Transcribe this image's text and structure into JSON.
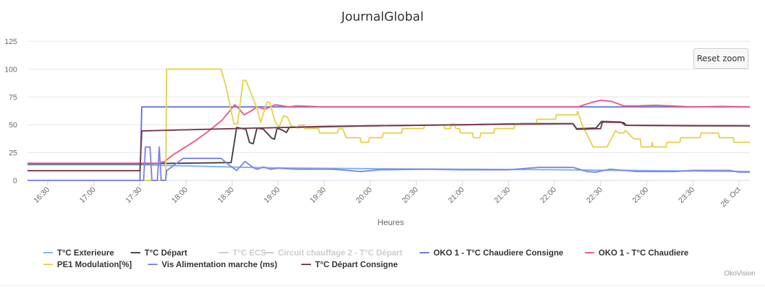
{
  "chart_data": {
    "type": "line",
    "title": "JournalGlobal",
    "xlabel": "Heures",
    "ylabel": "",
    "ylim": [
      0,
      125
    ],
    "xlim_hours": [
      16.28,
      24.12
    ],
    "y_ticks": [
      "0",
      "25",
      "50",
      "75",
      "100",
      "125"
    ],
    "y_tick_values": [
      0,
      25,
      50,
      75,
      100,
      125
    ],
    "x_ticks": [
      {
        "t": 16.5,
        "label": "16:30"
      },
      {
        "t": 17,
        "label": "17:00"
      },
      {
        "t": 17.5,
        "label": "17:30"
      },
      {
        "t": 18,
        "label": "18:00"
      },
      {
        "t": 18.5,
        "label": "18:30"
      },
      {
        "t": 19,
        "label": "19:00"
      },
      {
        "t": 19.5,
        "label": "19:30"
      },
      {
        "t": 20,
        "label": "20:00"
      },
      {
        "t": 20.5,
        "label": "20:30"
      },
      {
        "t": 21,
        "label": "21:00"
      },
      {
        "t": 21.5,
        "label": "21:30"
      },
      {
        "t": 22,
        "label": "22:00"
      },
      {
        "t": 22.5,
        "label": "22:30"
      },
      {
        "t": 23,
        "label": "23:00"
      },
      {
        "t": 23.5,
        "label": "23:30"
      },
      {
        "t": 24,
        "label": "26. Oct"
      }
    ],
    "grid": true,
    "legend_position": "bottom",
    "series": [
      {
        "name": "T°C Exterieure",
        "color": "#7cb5ec",
        "visible": true,
        "data": [
          [
            16.28,
            14
          ],
          [
            17.5,
            14
          ],
          [
            18,
            13
          ],
          [
            18.6,
            11.8
          ],
          [
            19,
            11.2
          ],
          [
            20,
            10.5
          ],
          [
            21,
            10
          ],
          [
            22,
            9.6
          ],
          [
            23,
            8.8
          ],
          [
            24.12,
            8
          ]
        ]
      },
      {
        "name": "T°C Départ",
        "color": "#434348",
        "visible": true,
        "data": [
          [
            16.28,
            15
          ],
          [
            17.5,
            15
          ],
          [
            18,
            15.5
          ],
          [
            18.49,
            16
          ],
          [
            18.55,
            47.6
          ],
          [
            18.65,
            46
          ],
          [
            18.69,
            34
          ],
          [
            18.73,
            33
          ],
          [
            18.77,
            47
          ],
          [
            18.84,
            46
          ],
          [
            18.93,
            38
          ],
          [
            18.96,
            37
          ],
          [
            18.99,
            47
          ],
          [
            19.05,
            45
          ],
          [
            19.09,
            43
          ],
          [
            19.12,
            47.6
          ],
          [
            20,
            49
          ],
          [
            21,
            50
          ],
          [
            21.66,
            51
          ],
          [
            22.2,
            51
          ],
          [
            22.24,
            46.5
          ],
          [
            22.45,
            47
          ],
          [
            22.51,
            53
          ],
          [
            22.72,
            52.5
          ],
          [
            22.77,
            49.5
          ],
          [
            23.5,
            49
          ],
          [
            24.12,
            49
          ]
        ]
      },
      {
        "name": "T°C ECS",
        "color": "#90ed7d",
        "visible": false,
        "data": []
      },
      {
        "name": "Circuit chauffage 2 - T°C Départ",
        "color": "#f7a35c",
        "visible": false,
        "data": []
      },
      {
        "name": "OKO 1 - T°C Chaudiere Consigne",
        "color": "#6677dd",
        "visible": true,
        "data": [
          [
            16.28,
            0
          ],
          [
            17.5,
            0
          ],
          [
            17.52,
            66
          ],
          [
            24.12,
            66
          ]
        ]
      },
      {
        "name": "OKO 1 - T°C Chaudiere",
        "color": "#f05a87",
        "visible": true,
        "data": [
          [
            16.28,
            15.5
          ],
          [
            17.7,
            15.5
          ],
          [
            17.77,
            17
          ],
          [
            17.86,
            23
          ],
          [
            18.09,
            35
          ],
          [
            18.24,
            44
          ],
          [
            18.39,
            54
          ],
          [
            18.53,
            68
          ],
          [
            18.58,
            64
          ],
          [
            18.63,
            59
          ],
          [
            18.7,
            62
          ],
          [
            18.77,
            66
          ],
          [
            18.86,
            64
          ],
          [
            18.97,
            68
          ],
          [
            19.12,
            66
          ],
          [
            19.2,
            67
          ],
          [
            19.5,
            66
          ],
          [
            22.25,
            66
          ],
          [
            22.4,
            70
          ],
          [
            22.5,
            72
          ],
          [
            22.62,
            71
          ],
          [
            22.75,
            67
          ],
          [
            22.9,
            67
          ],
          [
            23.1,
            67.5
          ],
          [
            23.5,
            66
          ],
          [
            23.8,
            66.5
          ],
          [
            24.12,
            66
          ]
        ]
      },
      {
        "name": "PE1 Modulation[%]",
        "color": "#e4d354",
        "visible": true,
        "data": [
          [
            16.28,
            0
          ],
          [
            17.78,
            0
          ],
          [
            17.79,
            100
          ],
          [
            18.38,
            100
          ],
          [
            18.43,
            86
          ],
          [
            18.52,
            51
          ],
          [
            18.56,
            51
          ],
          [
            18.62,
            90
          ],
          [
            18.65,
            90
          ],
          [
            18.77,
            65
          ],
          [
            18.81,
            52
          ],
          [
            18.88,
            70.5
          ],
          [
            18.91,
            70
          ],
          [
            18.97,
            52
          ],
          [
            19.01,
            48
          ],
          [
            19.06,
            58
          ],
          [
            19.1,
            57
          ],
          [
            19.14,
            49
          ],
          [
            19.22,
            47
          ],
          [
            19.23,
            49.7
          ],
          [
            19.28,
            49.7
          ],
          [
            19.29,
            46.6
          ],
          [
            19.44,
            46.6
          ],
          [
            19.45,
            42.5
          ],
          [
            19.64,
            42.5
          ],
          [
            19.66,
            46.6
          ],
          [
            19.7,
            46.6
          ],
          [
            19.72,
            42.5
          ],
          [
            19.74,
            38.4
          ],
          [
            19.89,
            38.4
          ],
          [
            19.9,
            34.2
          ],
          [
            19.98,
            34.2
          ],
          [
            19.99,
            38.4
          ],
          [
            20.13,
            38.4
          ],
          [
            20.14,
            42.5
          ],
          [
            20.34,
            42.5
          ],
          [
            20.35,
            46.6
          ],
          [
            20.58,
            46.6
          ],
          [
            20.59,
            49.7
          ],
          [
            20.8,
            49.7
          ],
          [
            20.81,
            46.6
          ],
          [
            20.87,
            46.6
          ],
          [
            20.88,
            50.7
          ],
          [
            20.91,
            50.7
          ],
          [
            20.93,
            46.6
          ],
          [
            20.97,
            46.6
          ],
          [
            20.98,
            42.5
          ],
          [
            21.11,
            42.5
          ],
          [
            21.12,
            38.4
          ],
          [
            21.19,
            38.4
          ],
          [
            21.2,
            42.5
          ],
          [
            21.34,
            42.5
          ],
          [
            21.35,
            46.6
          ],
          [
            21.56,
            46.6
          ],
          [
            21.57,
            50.7
          ],
          [
            21.8,
            50.7
          ],
          [
            21.81,
            54.9
          ],
          [
            22.01,
            54.9
          ],
          [
            22.02,
            59
          ],
          [
            22.24,
            59
          ],
          [
            22.25,
            62
          ],
          [
            22.3,
            50
          ],
          [
            22.42,
            30
          ],
          [
            22.57,
            30
          ],
          [
            22.66,
            44.6
          ],
          [
            22.7,
            42.5
          ],
          [
            22.75,
            42.5
          ],
          [
            22.77,
            45
          ],
          [
            22.86,
            37.3
          ],
          [
            22.93,
            37.3
          ],
          [
            22.94,
            30
          ],
          [
            23.05,
            30
          ],
          [
            23.06,
            34.2
          ],
          [
            23.07,
            30
          ],
          [
            23.21,
            30
          ],
          [
            23.22,
            34.2
          ],
          [
            23.36,
            34.2
          ],
          [
            23.37,
            38.4
          ],
          [
            23.58,
            38.4
          ],
          [
            23.59,
            42.5
          ],
          [
            23.78,
            42.5
          ],
          [
            23.79,
            38.4
          ],
          [
            23.94,
            38.4
          ],
          [
            23.95,
            34.2
          ],
          [
            24.12,
            34.2
          ]
        ]
      },
      {
        "name": "Vis Alimentation marche (ms)",
        "color": "#8085e9",
        "visible": true,
        "data": [
          [
            16.28,
            0
          ],
          [
            17.54,
            0
          ],
          [
            17.56,
            30
          ],
          [
            17.61,
            30
          ],
          [
            17.63,
            0
          ],
          [
            17.69,
            0
          ],
          [
            17.71,
            30
          ],
          [
            17.73,
            0
          ],
          [
            17.78,
            0
          ],
          [
            17.79,
            8.7
          ],
          [
            17.97,
            19.8
          ],
          [
            18.38,
            19.8
          ],
          [
            18.48,
            13
          ],
          [
            18.55,
            9
          ],
          [
            18.64,
            17
          ],
          [
            18.72,
            12
          ],
          [
            18.77,
            10
          ],
          [
            18.84,
            12
          ],
          [
            18.92,
            10
          ],
          [
            19,
            11
          ],
          [
            19.2,
            10
          ],
          [
            19.6,
            10
          ],
          [
            19.9,
            8
          ],
          [
            20.1,
            9.5
          ],
          [
            20.6,
            10
          ],
          [
            21,
            9.5
          ],
          [
            21.5,
            9.5
          ],
          [
            21.83,
            11.7
          ],
          [
            22.2,
            11.7
          ],
          [
            22.35,
            8
          ],
          [
            22.45,
            7.4
          ],
          [
            22.6,
            10
          ],
          [
            22.75,
            9
          ],
          [
            22.9,
            8
          ],
          [
            23.3,
            8
          ],
          [
            23.5,
            9
          ],
          [
            23.9,
            9
          ],
          [
            24.0,
            7.5
          ],
          [
            24.12,
            7.5
          ]
        ]
      },
      {
        "name": "T°C Départ Consigne",
        "color": "#7b3a4a",
        "visible": true,
        "data": [
          [
            16.28,
            8.7
          ],
          [
            17.5,
            8.7
          ],
          [
            17.52,
            44.5
          ],
          [
            18.5,
            46.5
          ],
          [
            19.5,
            48.5
          ],
          [
            20.5,
            49.5
          ],
          [
            21.5,
            50.5
          ],
          [
            22.2,
            51
          ],
          [
            22.24,
            46
          ],
          [
            22.5,
            46.5
          ],
          [
            22.52,
            52.5
          ],
          [
            22.75,
            52
          ],
          [
            22.78,
            49.5
          ],
          [
            24.12,
            49
          ]
        ]
      }
    ]
  },
  "ui": {
    "reset_zoom": "Reset zoom",
    "credits": "OkoVision"
  }
}
